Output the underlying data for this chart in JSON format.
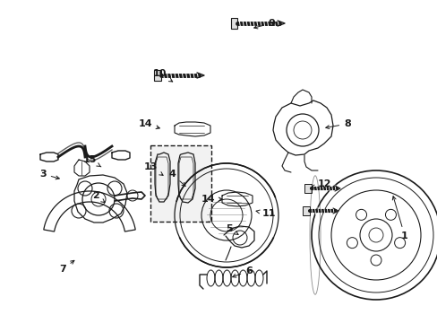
{
  "bg_color": "#ffffff",
  "lc": "#1a1a1a",
  "lw": 0.9,
  "figsize": [
    4.89,
    3.6
  ],
  "dpi": 100,
  "labels": {
    "1": [
      430,
      255,
      410,
      210
    ],
    "2": [
      105,
      218,
      128,
      228
    ],
    "3": [
      55,
      188,
      72,
      198
    ],
    "4": [
      185,
      195,
      200,
      213
    ],
    "5": [
      248,
      255,
      262,
      255
    ],
    "6": [
      265,
      302,
      248,
      302
    ],
    "7": [
      68,
      298,
      80,
      286
    ],
    "8": [
      378,
      138,
      358,
      143
    ],
    "9": [
      290,
      28,
      272,
      35
    ],
    "10": [
      176,
      82,
      196,
      96
    ],
    "11": [
      293,
      242,
      285,
      232
    ],
    "12": [
      356,
      210,
      340,
      213
    ],
    "13": [
      166,
      185,
      183,
      195
    ],
    "14a": [
      160,
      138,
      180,
      145
    ],
    "14b": [
      230,
      225,
      250,
      222
    ],
    "15": [
      100,
      177,
      110,
      185
    ]
  }
}
